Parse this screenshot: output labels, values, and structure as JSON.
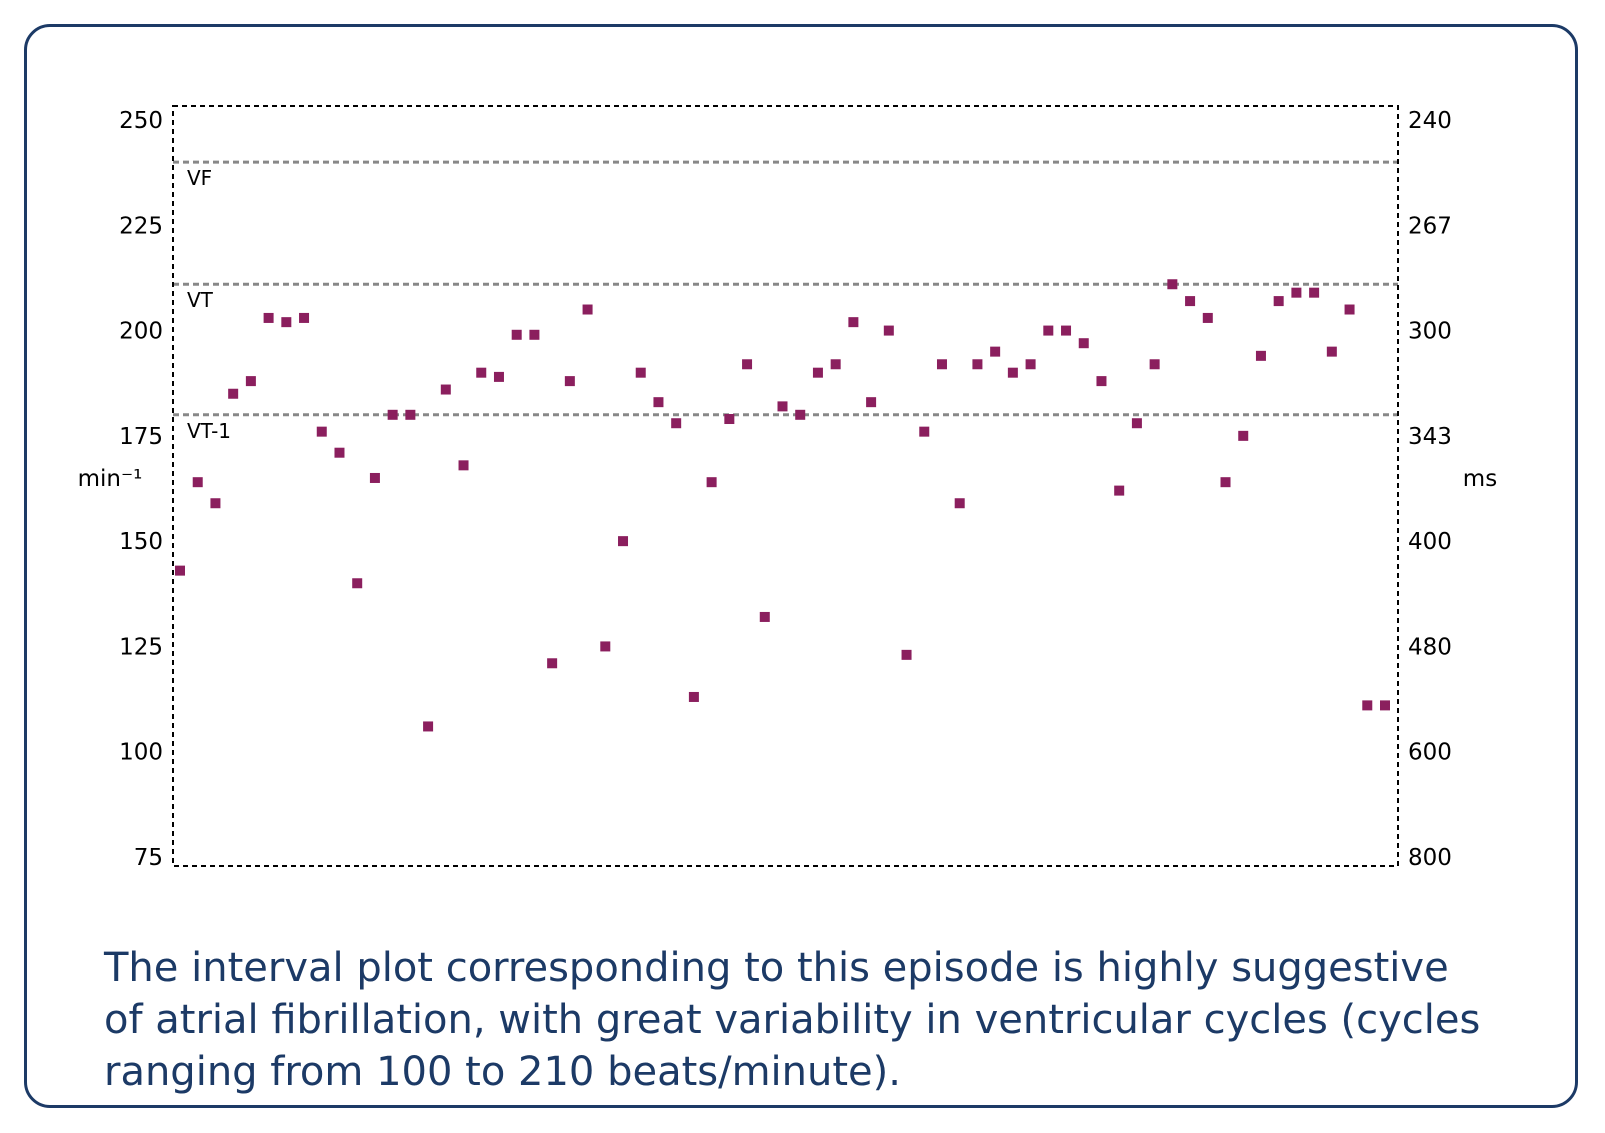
{
  "colors": {
    "frame": "#1c3a66",
    "caption_text": "#1c3a66",
    "point": "#8b1f5e",
    "zone_line": "#888888",
    "axis": "#000000"
  },
  "chart_data": {
    "type": "scatter",
    "title": "",
    "left_axis": {
      "label": "min⁻¹",
      "ticks": [
        250,
        225,
        200,
        175,
        150,
        125,
        100,
        75
      ],
      "range": [
        75,
        250
      ]
    },
    "right_axis": {
      "label": "ms",
      "ticks": [
        "240",
        "267",
        "300",
        "343",
        "400",
        "480",
        "600",
        "800"
      ]
    },
    "x_axis": {
      "label": "",
      "range": [
        0,
        69
      ]
    },
    "zones": [
      {
        "label": "VF",
        "value": 240
      },
      {
        "label": "VT",
        "value": 211
      },
      {
        "label": "VT-1",
        "value": 180
      }
    ],
    "x": [
      0,
      1,
      2,
      3,
      4,
      5,
      6,
      7,
      8,
      9,
      10,
      11,
      12,
      13,
      14,
      15,
      16,
      17,
      18,
      19,
      20,
      21,
      22,
      23,
      24,
      25,
      26,
      27,
      28,
      29,
      30,
      31,
      32,
      33,
      34,
      35,
      36,
      37,
      38,
      39,
      40,
      41,
      42,
      43,
      44,
      45,
      46,
      47,
      48,
      49,
      50,
      51,
      52,
      53,
      54,
      55,
      56,
      57,
      58,
      59,
      60,
      61,
      62,
      63,
      64,
      65,
      66,
      67,
      68
    ],
    "values": [
      143,
      164,
      159,
      185,
      188,
      203,
      202,
      203,
      176,
      171,
      140,
      165,
      180,
      180,
      106,
      186,
      168,
      190,
      189,
      199,
      199,
      121,
      188,
      205,
      125,
      150,
      190,
      183,
      178,
      113,
      164,
      179,
      192,
      132,
      182,
      180,
      190,
      192,
      202,
      183,
      200,
      123,
      176,
      192,
      159,
      192,
      195,
      190,
      192,
      200,
      200,
      197,
      188,
      162,
      178,
      192,
      211,
      207,
      203,
      164,
      175,
      194,
      207,
      209,
      209,
      195,
      205,
      111,
      111
    ]
  },
  "caption": {
    "text": "The interval plot corresponding to this episode is highly suggestive of atrial fibrillation, with great variability in ventricular cycles (cycles ranging from 100 to 210 beats/minute)."
  }
}
